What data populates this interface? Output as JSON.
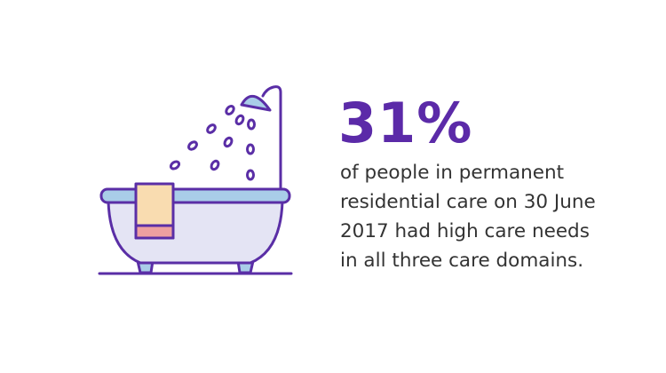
{
  "stat": "31%",
  "description_lines": [
    "of people in permanent",
    "residential care on 30 June",
    "2017 had high care needs",
    "in all three care domains."
  ]
}
